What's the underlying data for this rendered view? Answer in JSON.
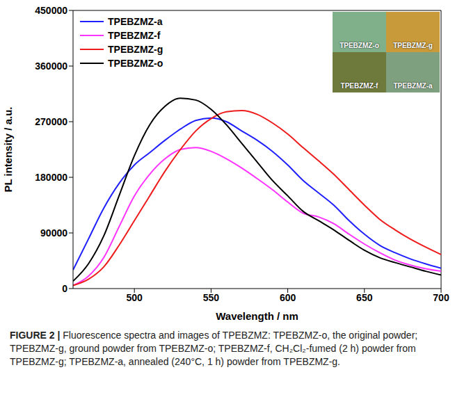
{
  "chart_data": {
    "type": "line",
    "x_label": "Wavelength / nm",
    "y_label": "PL intensity / a.u.",
    "x": [
      460,
      470,
      480,
      490,
      500,
      510,
      520,
      530,
      540,
      550,
      560,
      570,
      580,
      590,
      600,
      610,
      620,
      630,
      640,
      650,
      660,
      670,
      680,
      690,
      700
    ],
    "xlim": [
      460,
      700
    ],
    "xticks": [
      500,
      550,
      600,
      650,
      700
    ],
    "ylim": [
      0,
      450000
    ],
    "yticks": [
      0,
      90000,
      180000,
      270000,
      360000,
      450000
    ],
    "legend": "upper left",
    "annotations": [
      "TPEBZMZ-o",
      "TPEBZMZ-g",
      "TPEBZMZ-f",
      "TPEBZMZ-a"
    ],
    "series": [
      {
        "name": "TPEBZMZ-a",
        "color": "#2020ff",
        "values": [
          30000,
          80000,
          130000,
          170000,
          200000,
          220000,
          240000,
          258000,
          272000,
          276000,
          270000,
          255000,
          240000,
          222000,
          200000,
          175000,
          155000,
          135000,
          110000,
          88000,
          70000,
          58000,
          48000,
          40000,
          33000
        ]
      },
      {
        "name": "TPEBZMZ-f",
        "color": "#ff33ff",
        "values": [
          5000,
          20000,
          50000,
          100000,
          150000,
          185000,
          210000,
          225000,
          228000,
          222000,
          210000,
          195000,
          178000,
          160000,
          140000,
          122000,
          116000,
          105000,
          88000,
          72000,
          58000,
          46000,
          38000,
          32000,
          28000
        ]
      },
      {
        "name": "TPEBZMZ-g",
        "color": "#ee1c1c",
        "values": [
          5000,
          15000,
          35000,
          70000,
          110000,
          150000,
          190000,
          225000,
          255000,
          275000,
          286000,
          288000,
          282000,
          268000,
          250000,
          228000,
          207000,
          185000,
          160000,
          135000,
          112000,
          95000,
          80000,
          67000,
          55000
        ]
      },
      {
        "name": "TPEBZMZ-o",
        "color": "#000000",
        "values": [
          12000,
          40000,
          85000,
          150000,
          215000,
          265000,
          295000,
          308000,
          305000,
          290000,
          265000,
          235000,
          205000,
          175000,
          150000,
          125000,
          110000,
          95000,
          78000,
          62000,
          50000,
          42000,
          35000,
          28000,
          22000
        ]
      }
    ]
  },
  "caption": {
    "label": "FIGURE 2 |",
    "text": "Fluorescence spectra and images of TPEBZMZ: TPEBZMZ-o, the original powder; TPEBZMZ-g, ground powder from TPEBZMZ-o; TPEBZMZ-f, CH₂Cl₂-fumed (2 h) powder from TPEBZMZ-g; TPEBZMZ-a, annealed (240°C, 1 h) powder from TPEBZMZ-g."
  }
}
